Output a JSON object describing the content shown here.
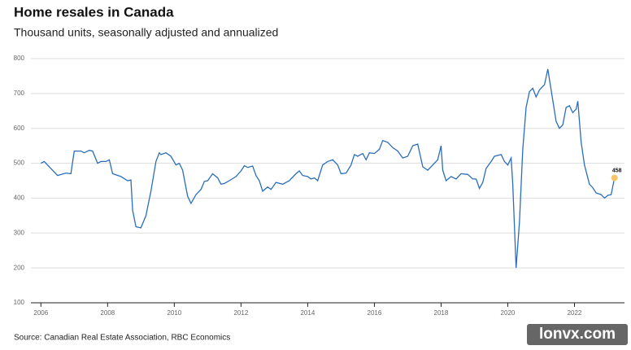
{
  "chart_data": {
    "type": "line",
    "title": "Home resales in Canada",
    "subtitle": "Thousand units, seasonally adjusted and annualized",
    "source": "Source: Canadian Real Estate Association, RBC Economics",
    "watermark": "lonvx.com",
    "color": "#2a6ebb",
    "highlight_color": "#f7c46c",
    "grid": true,
    "xlim": [
      2005.7,
      2023.5
    ],
    "ylim": [
      100,
      800
    ],
    "xticks": [
      2006,
      2008,
      2010,
      2012,
      2014,
      2016,
      2018,
      2020,
      2022
    ],
    "yticks": [
      100,
      200,
      300,
      400,
      500,
      600,
      700,
      800
    ],
    "x": [
      2006.0,
      2006.1,
      2006.25,
      2006.5,
      2006.75,
      2006.9,
      2007.0,
      2007.2,
      2007.3,
      2007.45,
      2007.55,
      2007.7,
      2007.8,
      2007.95,
      2008.05,
      2008.15,
      2008.4,
      2008.6,
      2008.7,
      2008.75,
      2008.85,
      2009.0,
      2009.15,
      2009.3,
      2009.45,
      2009.55,
      2009.6,
      2009.75,
      2009.9,
      2010.05,
      2010.15,
      2010.25,
      2010.4,
      2010.5,
      2010.65,
      2010.8,
      2010.9,
      2011.0,
      2011.15,
      2011.3,
      2011.4,
      2011.5,
      2011.65,
      2011.85,
      2012.0,
      2012.1,
      2012.2,
      2012.35,
      2012.45,
      2012.55,
      2012.65,
      2012.8,
      2012.9,
      2013.05,
      2013.25,
      2013.45,
      2013.65,
      2013.75,
      2013.85,
      2014.0,
      2014.1,
      2014.2,
      2014.3,
      2014.45,
      2014.6,
      2014.75,
      2014.9,
      2015.0,
      2015.15,
      2015.3,
      2015.4,
      2015.5,
      2015.65,
      2015.75,
      2015.85,
      2016.0,
      2016.15,
      2016.25,
      2016.4,
      2016.55,
      2016.7,
      2016.85,
      2017.0,
      2017.15,
      2017.3,
      2017.45,
      2017.6,
      2017.75,
      2017.9,
      2018.0,
      2018.05,
      2018.15,
      2018.3,
      2018.45,
      2018.6,
      2018.8,
      2018.95,
      2019.05,
      2019.15,
      2019.25,
      2019.35,
      2019.5,
      2019.6,
      2019.8,
      2019.9,
      2020.0,
      2020.1,
      2020.15,
      2020.25,
      2020.35,
      2020.45,
      2020.55,
      2020.65,
      2020.75,
      2020.85,
      2020.95,
      2021.1,
      2021.2,
      2021.3,
      2021.45,
      2021.55,
      2021.65,
      2021.75,
      2021.85,
      2021.95,
      2022.05,
      2022.1,
      2022.2,
      2022.3,
      2022.45,
      2022.55,
      2022.65,
      2022.8,
      2022.9,
      2023.0,
      2023.1,
      2023.2
    ],
    "values": [
      500,
      505,
      490,
      465,
      472,
      470,
      535,
      535,
      530,
      537,
      535,
      500,
      505,
      505,
      510,
      470,
      462,
      450,
      452,
      365,
      318,
      315,
      350,
      420,
      505,
      530,
      525,
      530,
      520,
      495,
      500,
      480,
      405,
      385,
      410,
      425,
      448,
      450,
      470,
      458,
      440,
      442,
      450,
      462,
      478,
      493,
      488,
      492,
      465,
      450,
      420,
      432,
      425,
      445,
      440,
      450,
      470,
      478,
      465,
      462,
      455,
      458,
      450,
      495,
      505,
      510,
      495,
      470,
      472,
      495,
      525,
      520,
      528,
      510,
      530,
      528,
      540,
      565,
      560,
      545,
      535,
      515,
      520,
      550,
      555,
      490,
      480,
      495,
      510,
      550,
      480,
      450,
      462,
      455,
      470,
      468,
      455,
      455,
      428,
      445,
      485,
      505,
      520,
      525,
      505,
      495,
      515,
      440,
      200,
      330,
      540,
      660,
      705,
      715,
      690,
      710,
      725,
      770,
      710,
      620,
      600,
      610,
      660,
      665,
      645,
      655,
      678,
      560,
      495,
      440,
      430,
      415,
      410,
      400,
      408,
      410,
      458
    ]
  }
}
